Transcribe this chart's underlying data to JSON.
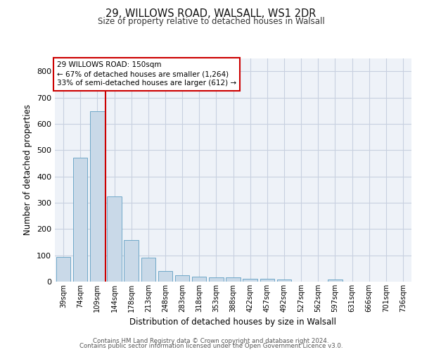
{
  "title_line1": "29, WILLOWS ROAD, WALSALL, WS1 2DR",
  "title_line2": "Size of property relative to detached houses in Walsall",
  "xlabel": "Distribution of detached houses by size in Walsall",
  "ylabel": "Number of detached properties",
  "footer_line1": "Contains HM Land Registry data © Crown copyright and database right 2024.",
  "footer_line2": "Contains public sector information licensed under the Open Government Licence v3.0.",
  "annotation_line1": "29 WILLOWS ROAD: 150sqm",
  "annotation_line2": "← 67% of detached houses are smaller (1,264)",
  "annotation_line3": "33% of semi-detached houses are larger (612) →",
  "bar_color": "#c9d9e8",
  "bar_edge_color": "#6fa8c8",
  "grid_color": "#c8d0e0",
  "bg_color": "#eef2f8",
  "vline_color": "#cc0000",
  "annotation_box_color": "#cc0000",
  "categories": [
    "39sqm",
    "74sqm",
    "109sqm",
    "144sqm",
    "178sqm",
    "213sqm",
    "248sqm",
    "283sqm",
    "318sqm",
    "353sqm",
    "388sqm",
    "422sqm",
    "457sqm",
    "492sqm",
    "527sqm",
    "562sqm",
    "597sqm",
    "631sqm",
    "666sqm",
    "701sqm",
    "736sqm"
  ],
  "values": [
    95,
    470,
    648,
    325,
    158,
    92,
    40,
    25,
    18,
    15,
    15,
    12,
    10,
    8,
    0,
    0,
    8,
    0,
    0,
    0,
    0
  ],
  "vline_x": 2.5,
  "ylim": [
    0,
    850
  ],
  "yticks": [
    0,
    100,
    200,
    300,
    400,
    500,
    600,
    700,
    800
  ]
}
